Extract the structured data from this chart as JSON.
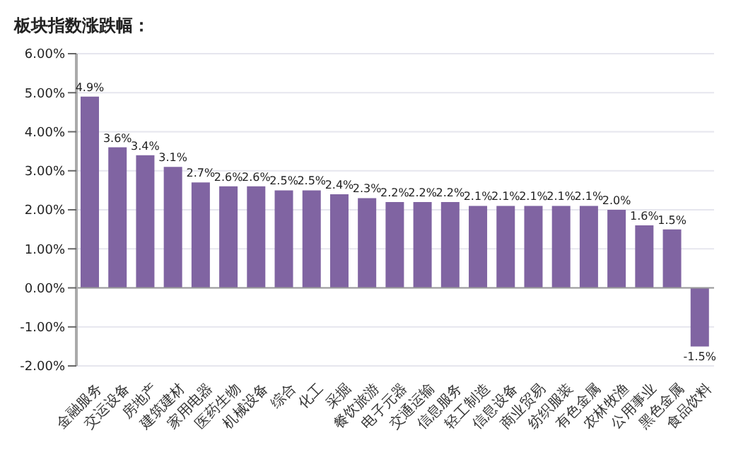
{
  "chart_data": {
    "type": "bar",
    "title": "板块指数涨跌幅：",
    "categories": [
      "金融服务",
      "交运设备",
      "房地产",
      "建筑建材",
      "家用电器",
      "医药生物",
      "机械设备",
      "综合",
      "化工",
      "采掘",
      "餐饮旅游",
      "电子元器",
      "交通运输",
      "信息服务",
      "轻工制造",
      "信息设备",
      "商业贸易",
      "纺织服装",
      "有色金属",
      "农林牧渔",
      "公用事业",
      "黑色金属",
      "食品饮料"
    ],
    "values": [
      4.9,
      3.6,
      3.4,
      3.1,
      2.7,
      2.6,
      2.6,
      2.5,
      2.5,
      2.4,
      2.3,
      2.2,
      2.2,
      2.2,
      2.1,
      2.1,
      2.1,
      2.1,
      2.1,
      2.0,
      1.6,
      1.5,
      -1.5
    ],
    "value_labels": [
      "4.9%",
      "3.6%",
      "3.4%",
      "3.1%",
      "2.7%",
      "2.6%",
      "2.6%",
      "2.5%",
      "2.5%",
      "2.4%",
      "2.3%",
      "2.2%",
      "2.2%",
      "2.2%",
      "2.1%",
      "2.1%",
      "2.1%",
      "2.1%",
      "2.1%",
      "2.0%",
      "1.6%",
      "1.5%",
      "-1.5%"
    ],
    "color": "#8064a2",
    "ylim": [
      -2,
      6
    ],
    "yticks": [
      {
        "value": -2,
        "label": "-2.00%"
      },
      {
        "value": -1,
        "label": "-1.00%"
      },
      {
        "value": 0,
        "label": "0.00%"
      },
      {
        "value": 1,
        "label": "1.00%"
      },
      {
        "value": 2,
        "label": "2.00%"
      },
      {
        "value": 3,
        "label": "3.00%"
      },
      {
        "value": 4,
        "label": "4.00%"
      },
      {
        "value": 5,
        "label": "5.00%"
      },
      {
        "value": 6,
        "label": "6.00%"
      }
    ],
    "grid": "y"
  }
}
